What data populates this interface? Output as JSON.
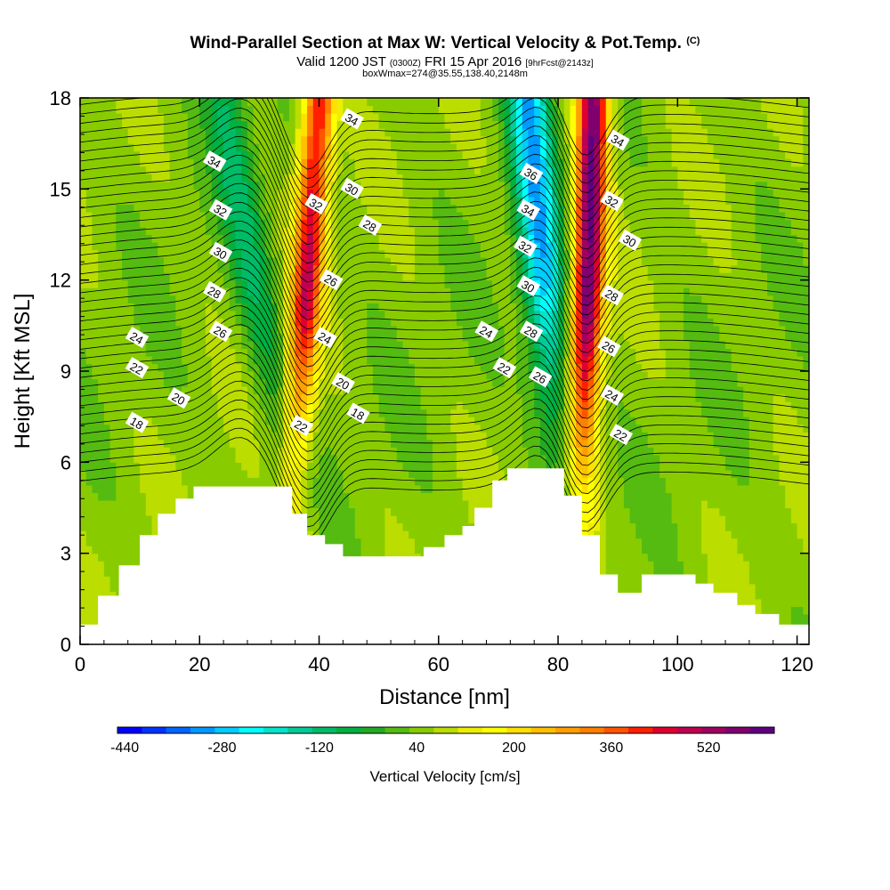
{
  "title": {
    "main": "Wind-Parallel Section at Max W: Vertical Velocity & Pot.Temp.",
    "mark": "(C)",
    "valid_prefix": "Valid 1200 JST",
    "valid_utc": "(0300Z)",
    "valid_date": "FRI 15 Apr 2016",
    "forecast": "[9hrFcst@2143z]",
    "box": "boxWmax=274@35.55,138.40,2148m"
  },
  "colorbar": {
    "title": "Vertical Velocity [cm/s]",
    "colors": [
      "#0000ff",
      "#0033ff",
      "#0066ff",
      "#0099ff",
      "#00ccff",
      "#00ffff",
      "#00e6cc",
      "#00cc99",
      "#00bb66",
      "#00b040",
      "#22aa22",
      "#55bb11",
      "#88cc00",
      "#bbdd00",
      "#eeee00",
      "#ffff00",
      "#ffe000",
      "#ffc000",
      "#ffa000",
      "#ff8000",
      "#ff5500",
      "#ff2000",
      "#e00030",
      "#c00050",
      "#a00060",
      "#800070",
      "#600080"
    ],
    "labels": [
      "-440",
      "-280",
      "-120",
      "40",
      "200",
      "360",
      "520"
    ]
  },
  "chart_data": {
    "type": "heatmap",
    "xlabel": "Distance [nm]",
    "ylabel": "Height [Kft MSL]",
    "xlim": [
      0,
      122
    ],
    "ylim": [
      0,
      18
    ],
    "xticks": [
      0,
      20,
      40,
      60,
      80,
      100,
      120
    ],
    "yticks": [
      0,
      3,
      6,
      9,
      12,
      15,
      18
    ],
    "field": "Vertical Velocity [cm/s]",
    "updrafts": [
      {
        "x_center_at_18kft": 40,
        "x_center_at_6kft": 36,
        "peak_cm_s": 400
      },
      {
        "x_center_at_18kft": 86,
        "x_center_at_6kft": 84,
        "peak_cm_s": 540
      }
    ],
    "downdrafts": [
      {
        "x_center_at_18kft": 24,
        "x_center_at_6kft": 34,
        "min_cm_s": -140
      },
      {
        "x_center_at_18kft": 75,
        "x_center_at_6kft": 80,
        "min_cm_s": -330
      }
    ],
    "terrain": [
      {
        "x": 0,
        "h": 0.65
      },
      {
        "x": 3,
        "h": 1.6
      },
      {
        "x": 6.5,
        "h": 2.6
      },
      {
        "x": 10,
        "h": 3.6
      },
      {
        "x": 13,
        "h": 4.3
      },
      {
        "x": 16,
        "h": 4.8
      },
      {
        "x": 19,
        "h": 5.2
      },
      {
        "x": 35.5,
        "h": 4.3
      },
      {
        "x": 38,
        "h": 3.6
      },
      {
        "x": 41,
        "h": 3.3
      },
      {
        "x": 44,
        "h": 2.9
      },
      {
        "x": 57.5,
        "h": 3.2
      },
      {
        "x": 61,
        "h": 3.6
      },
      {
        "x": 64,
        "h": 3.9
      },
      {
        "x": 66,
        "h": 4.5
      },
      {
        "x": 69,
        "h": 5.4
      },
      {
        "x": 71.5,
        "h": 5.8
      },
      {
        "x": 81,
        "h": 4.9
      },
      {
        "x": 84,
        "h": 3.6
      },
      {
        "x": 87,
        "h": 2.3
      },
      {
        "x": 90,
        "h": 1.7
      },
      {
        "x": 94,
        "h": 2.3
      },
      {
        "x": 103,
        "h": 2.0
      },
      {
        "x": 106,
        "h": 1.7
      },
      {
        "x": 110,
        "h": 1.3
      },
      {
        "x": 113,
        "h": 1.0
      },
      {
        "x": 117,
        "h": 0.65
      },
      {
        "x": 122,
        "h": 0.35
      }
    ],
    "isentrope_labels": [
      {
        "text": "34",
        "x": 22.5,
        "y": 15.9
      },
      {
        "text": "32",
        "x": 23.5,
        "y": 14.3
      },
      {
        "text": "30",
        "x": 23.5,
        "y": 12.9
      },
      {
        "text": "28",
        "x": 22.5,
        "y": 11.6
      },
      {
        "text": "26",
        "x": 23.5,
        "y": 10.3
      },
      {
        "text": "24",
        "x": 9.5,
        "y": 10.1
      },
      {
        "text": "22",
        "x": 9.5,
        "y": 9.1
      },
      {
        "text": "20",
        "x": 16.5,
        "y": 8.1
      },
      {
        "text": "18",
        "x": 9.5,
        "y": 7.3
      },
      {
        "text": "34",
        "x": 45.5,
        "y": 17.3
      },
      {
        "text": "32",
        "x": 39.5,
        "y": 14.5
      },
      {
        "text": "30",
        "x": 45.5,
        "y": 15.0
      },
      {
        "text": "28",
        "x": 48.5,
        "y": 13.8
      },
      {
        "text": "26",
        "x": 42,
        "y": 12.0
      },
      {
        "text": "24",
        "x": 41,
        "y": 10.1
      },
      {
        "text": "20",
        "x": 44,
        "y": 8.6
      },
      {
        "text": "18",
        "x": 46.5,
        "y": 7.6
      },
      {
        "text": "22",
        "x": 37,
        "y": 7.2
      },
      {
        "text": "36",
        "x": 75.5,
        "y": 15.5
      },
      {
        "text": "34",
        "x": 75,
        "y": 14.3
      },
      {
        "text": "32",
        "x": 74.5,
        "y": 13.1
      },
      {
        "text": "30",
        "x": 75,
        "y": 11.8
      },
      {
        "text": "28",
        "x": 75.5,
        "y": 10.3
      },
      {
        "text": "26",
        "x": 77,
        "y": 8.8
      },
      {
        "text": "24",
        "x": 68,
        "y": 10.3
      },
      {
        "text": "22",
        "x": 71,
        "y": 9.1
      },
      {
        "text": "34",
        "x": 90,
        "y": 16.6
      },
      {
        "text": "32",
        "x": 89,
        "y": 14.6
      },
      {
        "text": "30",
        "x": 92,
        "y": 13.3
      },
      {
        "text": "28",
        "x": 89,
        "y": 11.5
      },
      {
        "text": "26",
        "x": 88.5,
        "y": 9.8
      },
      {
        "text": "24",
        "x": 89,
        "y": 8.2
      },
      {
        "text": "22",
        "x": 90.5,
        "y": 6.9
      }
    ]
  }
}
